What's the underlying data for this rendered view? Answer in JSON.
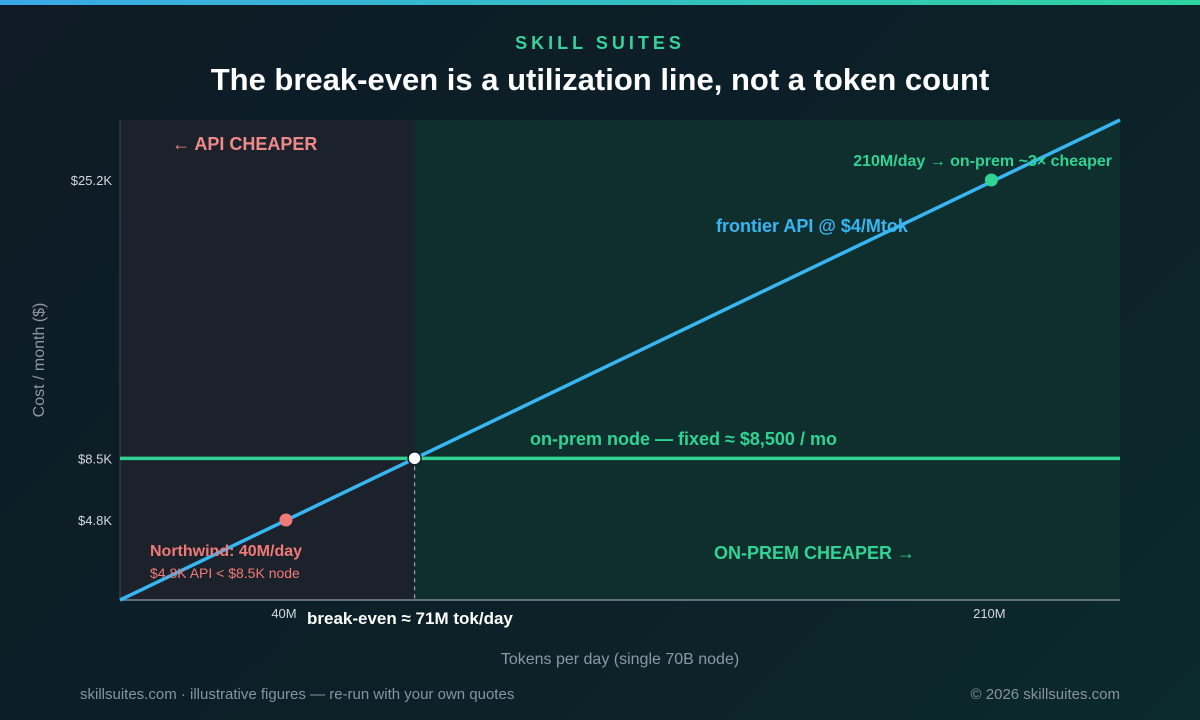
{
  "header": {
    "brand": "SKILL SUITES",
    "title": "The break-even is a utilization line, not a token count"
  },
  "footer": {
    "left": "skillsuites.com · illustrative figures — re-run with your own quotes",
    "right": "© 2026 skillsuites.com"
  },
  "colors": {
    "api": "#38b6f2",
    "onprem": "#2fd493",
    "northwind": "#f07a78",
    "api_region": "#1c222c",
    "onprem_region": "#0f2e2e"
  },
  "chart_data": {
    "type": "line",
    "xlabel": "Tokens per day (single 70B node)",
    "ylabel": "Cost / month ($)",
    "x_unit": "M tokens/day",
    "y_unit": "$ per month",
    "xlim": [
      0,
      241
    ],
    "ylim": [
      0,
      28800
    ],
    "x_ticks": [
      {
        "value": 40,
        "label": "40M"
      },
      {
        "value": 210,
        "label": "210M"
      }
    ],
    "y_ticks": [
      {
        "value": 4800,
        "label": "$4.8K"
      },
      {
        "value": 8500,
        "label": "$8.5K"
      },
      {
        "value": 25200,
        "label": "$25.2K"
      }
    ],
    "series": [
      {
        "name": "frontier API @ $4/Mtok",
        "x": [
          0,
          241
        ],
        "y": [
          0,
          28800
        ]
      },
      {
        "name": "on-prem node — fixed ≈ $8,500 / mo",
        "x": [
          0,
          241
        ],
        "y": [
          8500,
          8500
        ]
      }
    ],
    "regions": [
      {
        "label": "← API CHEAPER",
        "x_from": 0,
        "x_to": 71
      },
      {
        "label": "ON-PREM CHEAPER →",
        "x_from": 71,
        "x_to": 241
      }
    ],
    "annotations": {
      "break_even": {
        "x": 71,
        "y": 8500,
        "label": "break-even ≈ 71M tok/day"
      },
      "northwind": {
        "x": 40,
        "y": 4800,
        "title": "Northwind: 40M/day",
        "detail": "$4.8K API < $8.5K node"
      },
      "high_volume": {
        "x": 210,
        "y": 25200,
        "label": "210M/day → on-prem ~3× cheaper"
      }
    }
  }
}
